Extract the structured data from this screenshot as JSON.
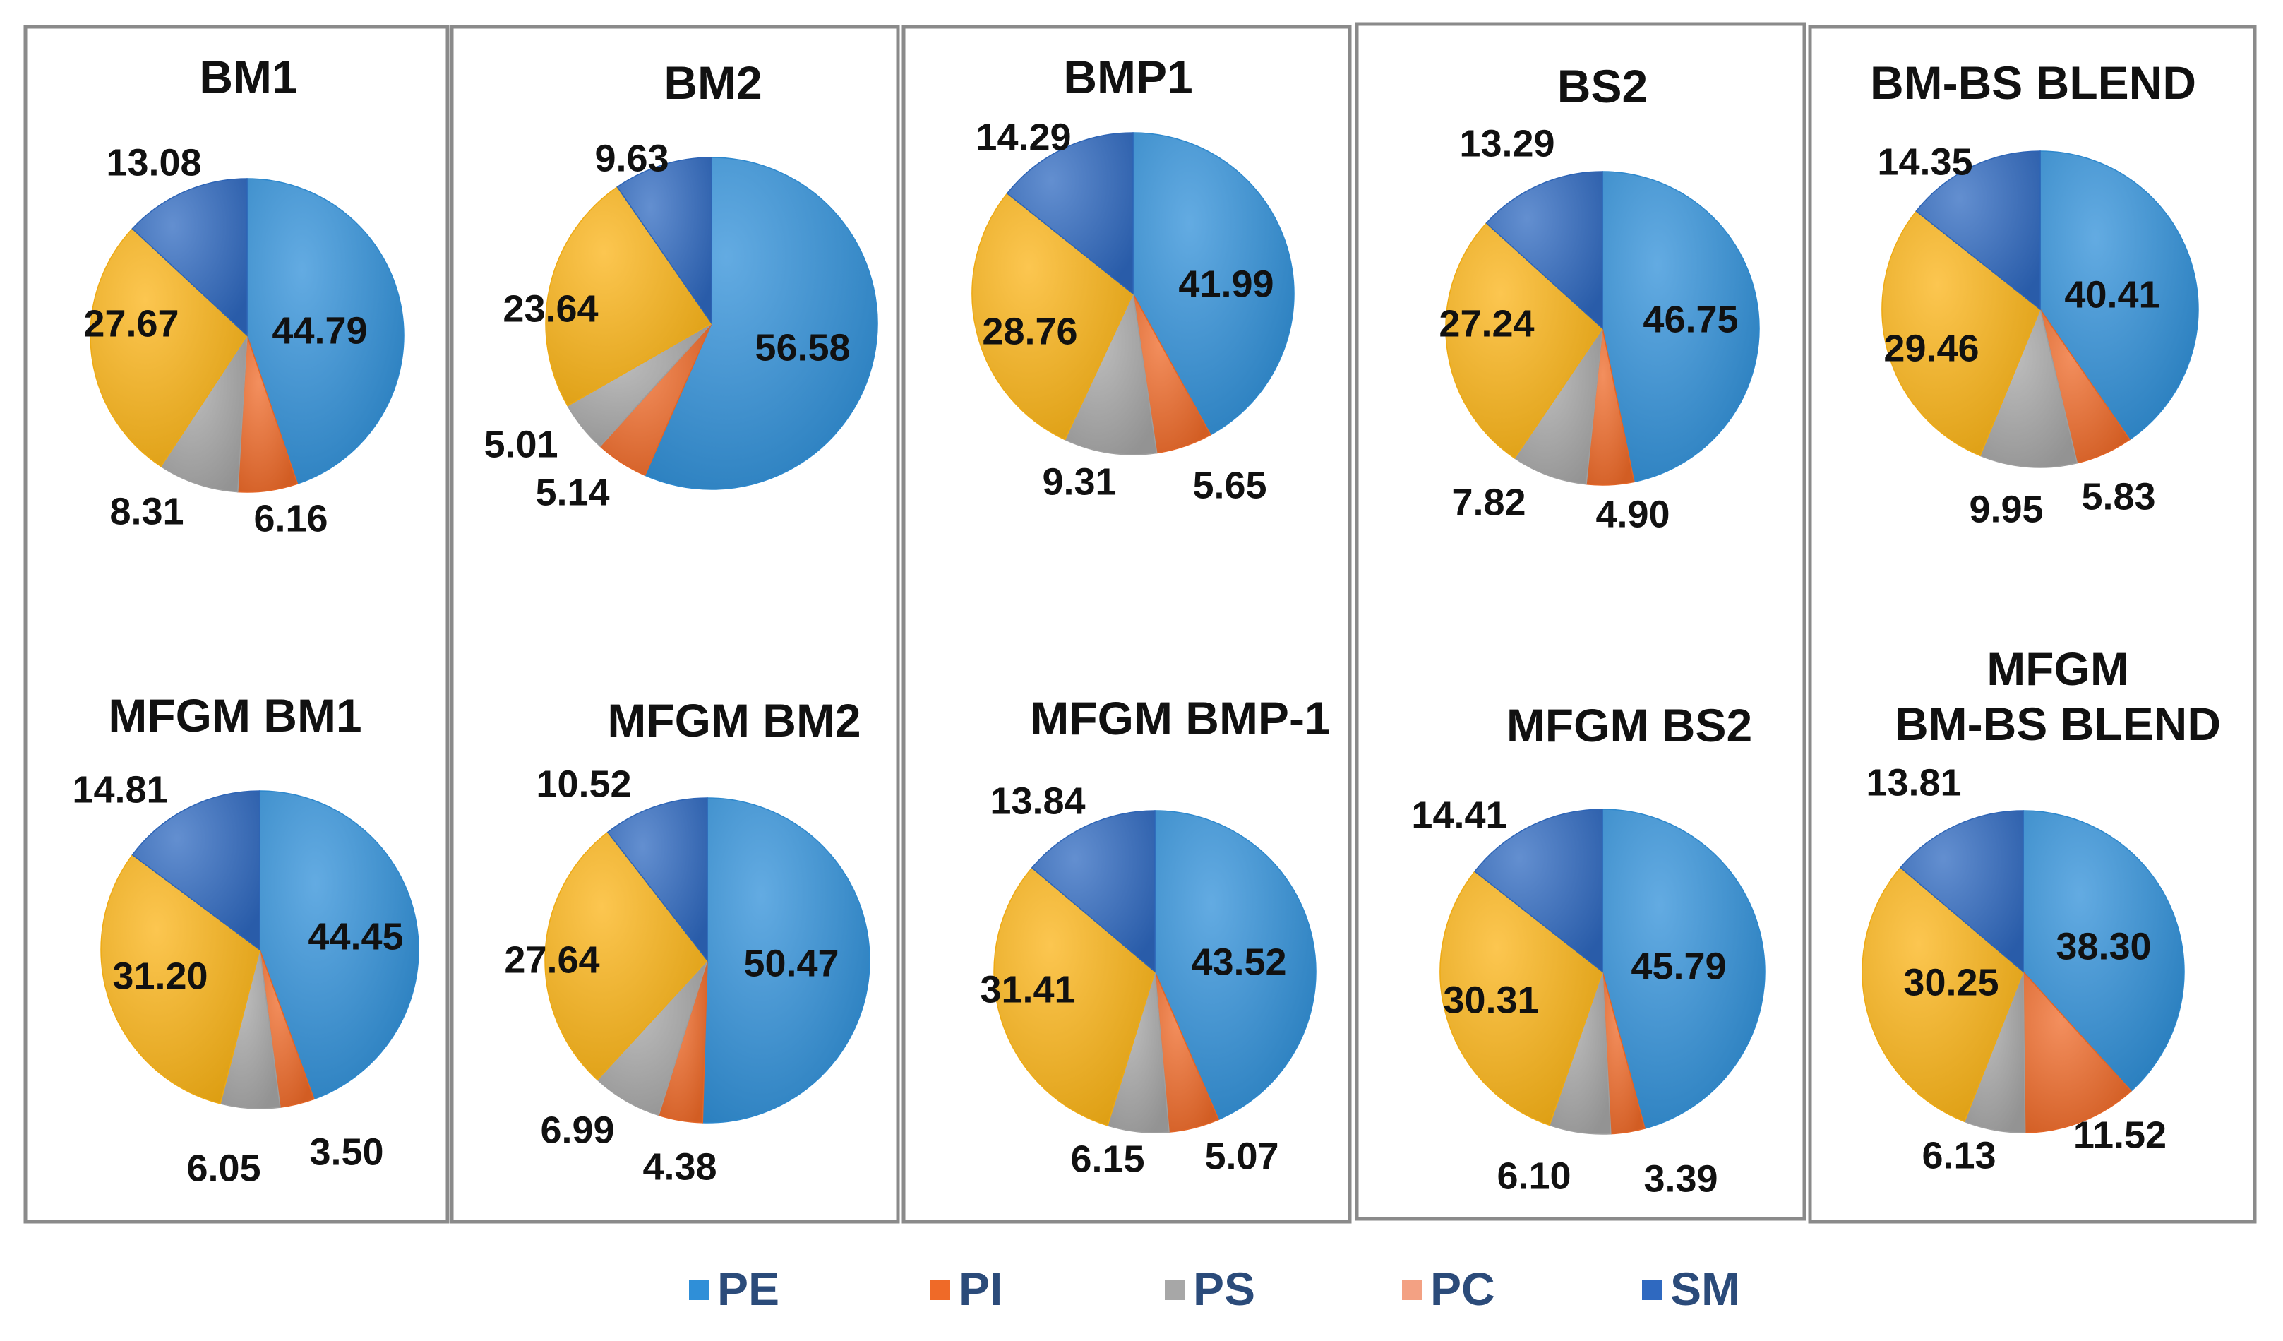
{
  "colors": {
    "PE": "#2f8fd8",
    "PI": "#ef6a28",
    "PS": "#a7a7a7",
    "PC": "#f3a183",
    "SM": "#2f69c0",
    "yellow": "#fbb315"
  },
  "legend": [
    {
      "key": "PE",
      "label": "PE"
    },
    {
      "key": "PI",
      "label": "PI"
    },
    {
      "key": "PS",
      "label": "PS"
    },
    {
      "key": "PC",
      "label": "PC"
    },
    {
      "key": "SM",
      "label": "SM"
    }
  ],
  "chart_data": [
    {
      "type": "pie",
      "title": [
        "BM1"
      ],
      "categories": [
        "PE",
        "PI",
        "PS",
        "yellow",
        "SM"
      ],
      "values": [
        44.79,
        6.16,
        8.31,
        27.67,
        13.08
      ],
      "labels": [
        "44.79",
        "6.16",
        "8.31",
        "27.67",
        "13.08"
      ]
    },
    {
      "type": "pie",
      "title": [
        "BM2"
      ],
      "categories": [
        "PE",
        "PI",
        "PS",
        "yellow",
        "SM"
      ],
      "values": [
        56.58,
        5.14,
        5.01,
        23.64,
        9.63
      ],
      "labels": [
        "56.58",
        "5.14",
        "5.01",
        "23.64",
        "9.63"
      ]
    },
    {
      "type": "pie",
      "title": [
        "BMP1"
      ],
      "categories": [
        "PE",
        "PI",
        "PS",
        "yellow",
        "SM"
      ],
      "values": [
        41.99,
        5.65,
        9.31,
        28.76,
        14.29
      ],
      "labels": [
        "41.99",
        "5.65",
        "9.31",
        "28.76",
        "14.29"
      ]
    },
    {
      "type": "pie",
      "title": [
        "BS2"
      ],
      "categories": [
        "PE",
        "PI",
        "PS",
        "yellow",
        "SM"
      ],
      "values": [
        46.75,
        4.9,
        7.82,
        27.24,
        13.29
      ],
      "labels": [
        "46.75",
        "4.90",
        "7.82",
        "27.24",
        "13.29"
      ]
    },
    {
      "type": "pie",
      "title": [
        "BM-BS BLEND"
      ],
      "categories": [
        "PE",
        "PI",
        "PS",
        "yellow",
        "SM"
      ],
      "values": [
        40.41,
        5.83,
        9.95,
        29.46,
        14.35
      ],
      "labels": [
        "40.41",
        "5.83",
        "9.95",
        "29.46",
        "14.35"
      ]
    },
    {
      "type": "pie",
      "title": [
        "MFGM BM1"
      ],
      "categories": [
        "PE",
        "PI",
        "PS",
        "yellow",
        "SM"
      ],
      "values": [
        44.45,
        3.5,
        6.05,
        31.2,
        14.81
      ],
      "labels": [
        "44.45",
        "3.50",
        "6.05",
        "31.20",
        "14.81"
      ]
    },
    {
      "type": "pie",
      "title": [
        "MFGM BM2"
      ],
      "categories": [
        "PE",
        "PI",
        "PS",
        "yellow",
        "SM"
      ],
      "values": [
        50.47,
        4.38,
        6.99,
        27.64,
        10.52
      ],
      "labels": [
        "50.47",
        "4.38",
        "6.99",
        "27.64",
        "10.52"
      ]
    },
    {
      "type": "pie",
      "title": [
        "MFGM BMP-1"
      ],
      "categories": [
        "PE",
        "PI",
        "PS",
        "yellow",
        "SM"
      ],
      "values": [
        43.52,
        5.07,
        6.15,
        31.41,
        13.84
      ],
      "labels": [
        "43.52",
        "5.07",
        "6.15",
        "31.41",
        "13.84"
      ]
    },
    {
      "type": "pie",
      "title": [
        "MFGM BS2"
      ],
      "categories": [
        "PE",
        "PI",
        "PS",
        "yellow",
        "SM"
      ],
      "values": [
        45.79,
        3.39,
        6.1,
        30.31,
        14.41
      ],
      "labels": [
        "45.79",
        "3.39",
        "6.10",
        "30.31",
        "14.41"
      ]
    },
    {
      "type": "pie",
      "title": [
        "MFGM",
        "BM-BS BLEND"
      ],
      "categories": [
        "PE",
        "PI",
        "PS",
        "yellow",
        "SM"
      ],
      "values": [
        38.3,
        11.52,
        6.13,
        30.25,
        13.81
      ],
      "labels": [
        "38.30",
        "11.52",
        "6.13",
        "30.25",
        "13.81"
      ]
    }
  ]
}
